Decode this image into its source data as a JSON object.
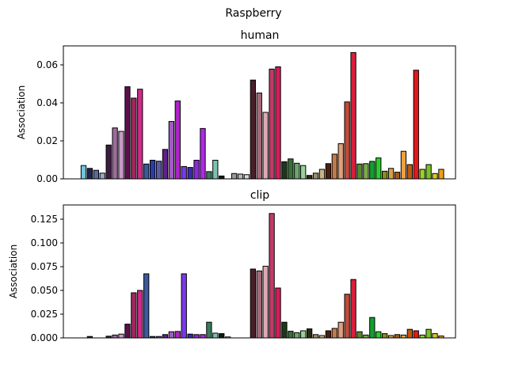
{
  "figure_title": "Raspberry",
  "chart_data": [
    {
      "type": "bar",
      "title": "human",
      "xlabel": "",
      "ylabel": "Association",
      "ylim": [
        0,
        0.07
      ],
      "yticks": [
        0.0,
        0.02,
        0.04,
        0.06
      ],
      "ytick_labels": [
        "0.00",
        "0.02",
        "0.04",
        "0.06"
      ],
      "grid": false,
      "values": [
        0.007,
        0.0055,
        0.0045,
        0.003,
        0.0178,
        0.0268,
        0.025,
        0.0485,
        0.0425,
        0.0472,
        0.0078,
        0.0098,
        0.0093,
        0.0155,
        0.0302,
        0.041,
        0.0065,
        0.006,
        0.0098,
        0.0265,
        0.0038,
        0.0098,
        0.0015,
        0,
        0.0028,
        0.0025,
        0.0022,
        0.052,
        0.0452,
        0.035,
        0.0578,
        0.059,
        0.009,
        0.0105,
        0.0082,
        0.007,
        0.0018,
        0.003,
        0.005,
        0.008,
        0.013,
        0.0185,
        0.0405,
        0.0665,
        0.0078,
        0.008,
        0.0092,
        0.011,
        0.004,
        0.0055,
        0.0035,
        0.0145,
        0.0075,
        0.0572,
        0.005,
        0.0075,
        0.0028,
        0.005
      ],
      "colors": [
        "#6ec6df",
        "#20264a",
        "#5a6a9a",
        "#9aa6c6",
        "#3c1c40",
        "#9c6c9c",
        "#c89ac8",
        "#5e0e4e",
        "#a0285e",
        "#d22a8a",
        "#3c5a9a",
        "#2c3ca6",
        "#5a5aa6",
        "#60208a",
        "#a25ac8",
        "#b022c8",
        "#7a3ae8",
        "#3a2aa6",
        "#8a2ad8",
        "#ae2ae6",
        "#3a7a5a",
        "#7ac2b2",
        "#101a10",
        "#ffffff",
        "#9a9a9a",
        "#b8b8b8",
        "#d8d8d8",
        "#4a1e2a",
        "#a86a7a",
        "#e0a8b0",
        "#c03a6a",
        "#d21e5a",
        "#1a3a1a",
        "#3a6e3a",
        "#6aa86a",
        "#9ad09a",
        "#2a2a10",
        "#9a9060",
        "#c8b48a",
        "#4a1e0e",
        "#c07a4a",
        "#e0a07a",
        "#c04a3a",
        "#dc1e3a",
        "#5a8a2a",
        "#7aaa4a",
        "#12a02a",
        "#2ace2a",
        "#8a8a2a",
        "#d8a04a",
        "#a85a1a",
        "#f0a040",
        "#c05a10",
        "#e21a1a",
        "#9ad02a",
        "#7ac02a",
        "#d8c82a",
        "#f0a010"
      ]
    },
    {
      "type": "bar",
      "title": "clip",
      "xlabel": "",
      "ylabel": "Association",
      "ylim": [
        0,
        0.14
      ],
      "yticks": [
        0.0,
        0.025,
        0.05,
        0.075,
        0.1,
        0.125
      ],
      "ytick_labels": [
        "0.000",
        "0.025",
        "0.050",
        "0.075",
        "0.100",
        "0.125"
      ],
      "grid": false,
      "values": [
        0,
        0.0015,
        0,
        0,
        0.0018,
        0.003,
        0.004,
        0.0145,
        0.0475,
        0.05,
        0.0675,
        0.0015,
        0.0015,
        0.0035,
        0.0065,
        0.0068,
        0.0675,
        0.004,
        0.0035,
        0.0035,
        0.0165,
        0.005,
        0.0045,
        0.001,
        0,
        0,
        0,
        0.0725,
        0.0705,
        0.0755,
        0.131,
        0.0525,
        0.0165,
        0.007,
        0.0055,
        0.0075,
        0.0095,
        0.0035,
        0.0025,
        0.0075,
        0.01,
        0.0165,
        0.046,
        0.0615,
        0.0065,
        0.003,
        0.0215,
        0.0065,
        0.0045,
        0.0025,
        0.0035,
        0.003,
        0.009,
        0.0075,
        0.003,
        0.009,
        0.0045,
        0.002
      ],
      "colors": [
        "#6ec6df",
        "#20264a",
        "#5a6a9a",
        "#9aa6c6",
        "#3c1c40",
        "#9c6c9c",
        "#c89ac8",
        "#5e0e4e",
        "#a0285e",
        "#d22a8a",
        "#3c5a9a",
        "#2c3ca6",
        "#5a5aa6",
        "#60208a",
        "#a25ac8",
        "#b022c8",
        "#7a3ae8",
        "#3a2aa6",
        "#8a2ad8",
        "#ae2ae6",
        "#3a7a5a",
        "#7ac2b2",
        "#101a10",
        "#ffffff",
        "#9a9a9a",
        "#b8b8b8",
        "#d8d8d8",
        "#4a1e2a",
        "#a86a7a",
        "#e0a8b0",
        "#c03a6a",
        "#d21e5a",
        "#1a3a1a",
        "#3a6e3a",
        "#6aa86a",
        "#9ad09a",
        "#2a2a10",
        "#9a9060",
        "#c8b48a",
        "#4a1e0e",
        "#c07a4a",
        "#e0a07a",
        "#c04a3a",
        "#dc1e3a",
        "#5a8a2a",
        "#7aaa4a",
        "#12a02a",
        "#2ace2a",
        "#8a8a2a",
        "#d8a04a",
        "#a85a1a",
        "#f0a040",
        "#c05a10",
        "#e21a1a",
        "#9ad02a",
        "#7ac02a",
        "#d8c82a",
        "#f0a010"
      ]
    }
  ]
}
